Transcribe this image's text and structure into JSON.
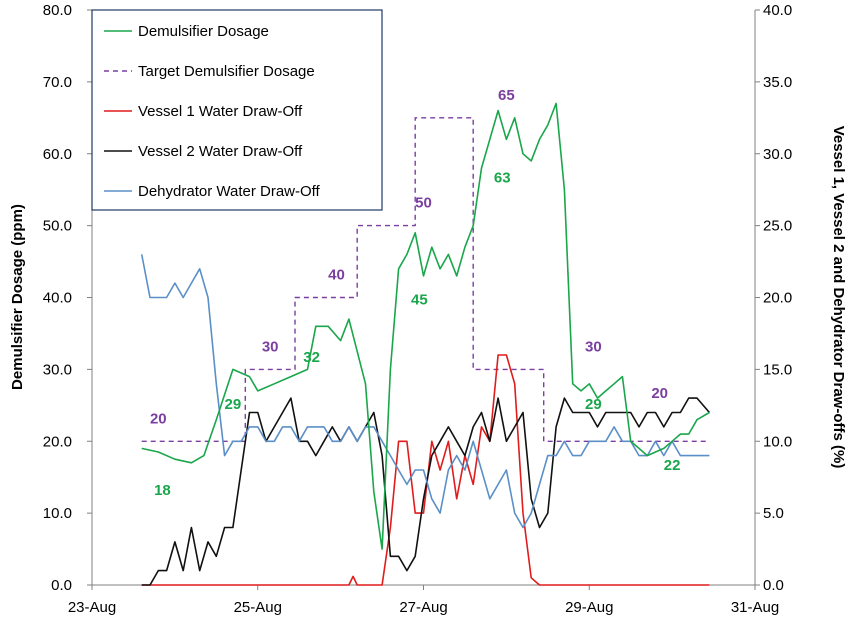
{
  "chart_data": {
    "type": "line",
    "title": "",
    "xlabel": "",
    "ylabel": "Demulsifier Dosage (ppm)",
    "y2label": "Vessel 1, Vessel 2 and Dehydrator Draw-offs (%)",
    "xlim": [
      0,
      8
    ],
    "ylim": [
      0,
      80
    ],
    "y2lim": [
      0,
      40
    ],
    "grid": false,
    "legend_position": "top-left",
    "x_ticks": [
      "23-Aug",
      "25-Aug",
      "27-Aug",
      "29-Aug",
      "31-Aug"
    ],
    "y_ticks": [
      "0.0",
      "10.0",
      "20.0",
      "30.0",
      "40.0",
      "50.0",
      "60.0",
      "70.0",
      "80.0"
    ],
    "y2_ticks": [
      "0.0",
      "5.0",
      "10.0",
      "15.0",
      "20.0",
      "25.0",
      "30.0",
      "35.0",
      "40.0"
    ],
    "colors": {
      "demulsifier": "#1aa64b",
      "target": "#7a3fa0",
      "vessel1": "#e01c1c",
      "vessel2": "#111111",
      "dehydrator": "#5b8fc7",
      "axis": "#808080"
    },
    "series": [
      {
        "name": "Demulsifier Dosage",
        "axis": "left",
        "color": "#1aa64b",
        "style": "solid",
        "x": [
          0.6,
          0.8,
          1.0,
          1.2,
          1.35,
          1.5,
          1.7,
          1.9,
          2.0,
          2.2,
          2.4,
          2.6,
          2.7,
          2.85,
          3.0,
          3.1,
          3.3,
          3.4,
          3.5,
          3.6,
          3.7,
          3.8,
          3.9,
          4.0,
          4.1,
          4.2,
          4.3,
          4.4,
          4.5,
          4.6,
          4.7,
          4.8,
          4.9,
          5.0,
          5.1,
          5.2,
          5.3,
          5.4,
          5.5,
          5.6,
          5.7,
          5.8,
          5.9,
          6.0,
          6.1,
          6.2,
          6.3,
          6.4,
          6.5,
          6.6,
          6.7,
          6.8,
          6.9,
          7.0,
          7.1,
          7.2,
          7.3,
          7.45
        ],
        "y": [
          19,
          18.5,
          17.5,
          17,
          18,
          23,
          30,
          29,
          27,
          28,
          29,
          30,
          36,
          36,
          34,
          37,
          28,
          13,
          5,
          30,
          44,
          46,
          49,
          43,
          47,
          44,
          46,
          43,
          47,
          50,
          58,
          62,
          66,
          62,
          65,
          60,
          59,
          62,
          64,
          67,
          55,
          28,
          27,
          28,
          26,
          27,
          28,
          29,
          20,
          19,
          18,
          18.5,
          19,
          20,
          21,
          21,
          23,
          24
        ]
      },
      {
        "name": "Target Demulsifier Dosage",
        "axis": "left",
        "color": "#7a3fa0",
        "style": "dashed",
        "x": [
          0.6,
          1.85,
          1.85,
          2.45,
          2.45,
          3.2,
          3.2,
          3.9,
          3.9,
          4.6,
          4.6,
          5.45,
          5.45,
          6.45,
          6.45,
          7.45
        ],
        "y": [
          20,
          20,
          30,
          30,
          40,
          40,
          50,
          50,
          65,
          65,
          30,
          30,
          20,
          20,
          20,
          20
        ]
      },
      {
        "name": "Vessel 1 Water Draw-Off",
        "axis": "right",
        "color": "#e01c1c",
        "style": "solid",
        "x": [
          0.6,
          1.5,
          2.5,
          3.1,
          3.15,
          3.2,
          3.5,
          3.6,
          3.7,
          3.8,
          3.9,
          4.0,
          4.1,
          4.2,
          4.3,
          4.4,
          4.5,
          4.6,
          4.7,
          4.8,
          4.9,
          5.0,
          5.1,
          5.2,
          5.3,
          5.4,
          5.5,
          5.6,
          6.5,
          7.45
        ],
        "y": [
          0,
          0,
          0,
          0,
          0.6,
          0,
          0,
          4,
          10,
          10,
          5,
          5,
          10,
          8,
          10,
          6,
          9,
          7,
          11,
          10,
          16,
          16,
          14,
          5,
          0.5,
          0,
          0,
          0,
          0,
          0
        ]
      },
      {
        "name": "Vessel 2 Water Draw-Off",
        "axis": "right",
        "color": "#111111",
        "style": "solid",
        "x": [
          0.6,
          0.7,
          0.8,
          0.9,
          1.0,
          1.1,
          1.2,
          1.3,
          1.4,
          1.5,
          1.6,
          1.7,
          1.8,
          1.9,
          2.0,
          2.1,
          2.2,
          2.3,
          2.4,
          2.5,
          2.6,
          2.7,
          2.8,
          2.9,
          3.0,
          3.1,
          3.2,
          3.3,
          3.4,
          3.5,
          3.6,
          3.7,
          3.8,
          3.9,
          4.0,
          4.1,
          4.2,
          4.3,
          4.4,
          4.5,
          4.6,
          4.7,
          4.8,
          4.9,
          5.0,
          5.1,
          5.2,
          5.3,
          5.4,
          5.5,
          5.6,
          5.7,
          5.8,
          5.9,
          6.0,
          6.1,
          6.2,
          6.3,
          6.4,
          6.5,
          6.6,
          6.7,
          6.8,
          6.9,
          7.0,
          7.1,
          7.2,
          7.3,
          7.45
        ],
        "y": [
          0,
          0,
          1,
          1,
          3,
          1,
          4,
          1,
          3,
          2,
          4,
          4,
          8,
          12,
          12,
          10,
          11,
          12,
          13,
          10,
          10,
          9,
          10,
          11,
          10,
          11,
          10,
          11,
          12,
          9,
          2,
          2,
          1,
          2,
          6,
          9,
          10,
          11,
          10,
          9,
          11,
          12,
          10,
          13,
          10,
          11,
          12,
          6,
          4,
          5,
          11,
          13,
          12,
          12,
          12,
          11,
          12,
          12,
          12,
          12,
          11,
          12,
          12,
          11,
          12,
          12,
          13,
          13,
          12
        ]
      },
      {
        "name": "Dehydrator Water Draw-Off",
        "axis": "right",
        "color": "#5b8fc7",
        "style": "solid",
        "x": [
          0.6,
          0.7,
          0.8,
          0.9,
          1.0,
          1.1,
          1.2,
          1.3,
          1.4,
          1.5,
          1.6,
          1.7,
          1.8,
          1.9,
          2.0,
          2.1,
          2.2,
          2.3,
          2.4,
          2.5,
          2.6,
          2.7,
          2.8,
          2.9,
          3.0,
          3.1,
          3.2,
          3.3,
          3.4,
          3.5,
          3.6,
          3.7,
          3.8,
          3.9,
          4.0,
          4.1,
          4.2,
          4.3,
          4.4,
          4.5,
          4.6,
          4.7,
          4.8,
          4.9,
          5.0,
          5.1,
          5.2,
          5.3,
          5.4,
          5.5,
          5.6,
          5.7,
          5.8,
          5.9,
          6.0,
          6.1,
          6.2,
          6.3,
          6.4,
          6.5,
          6.6,
          6.7,
          6.8,
          6.9,
          7.0,
          7.1,
          7.2,
          7.3,
          7.45
        ],
        "y": [
          23,
          20,
          20,
          20,
          21,
          20,
          21,
          22,
          20,
          14,
          9,
          10,
          10,
          11,
          11,
          10,
          10,
          11,
          11,
          10,
          11,
          11,
          11,
          10,
          10,
          11,
          10,
          11,
          11,
          10,
          9,
          8,
          7,
          8,
          8,
          6,
          5,
          8,
          9,
          8,
          10,
          8,
          6,
          7,
          8,
          5,
          4,
          5,
          7,
          9,
          9,
          10,
          9,
          9,
          10,
          10,
          10,
          11,
          10,
          10,
          9,
          9,
          10,
          9,
          10,
          9,
          9,
          9,
          9
        ]
      }
    ],
    "annotations": [
      {
        "text": "20",
        "x": 0.8,
        "y": 22.5,
        "color": "#7a3fa0"
      },
      {
        "text": "30",
        "x": 2.15,
        "y": 32.5,
        "color": "#7a3fa0"
      },
      {
        "text": "40",
        "x": 2.95,
        "y": 42.5,
        "color": "#7a3fa0"
      },
      {
        "text": "50",
        "x": 4.0,
        "y": 52.5,
        "color": "#7a3fa0"
      },
      {
        "text": "65",
        "x": 5.0,
        "y": 67.5,
        "color": "#7a3fa0"
      },
      {
        "text": "30",
        "x": 6.05,
        "y": 32.5,
        "color": "#7a3fa0"
      },
      {
        "text": "20",
        "x": 6.85,
        "y": 26.0,
        "color": "#7a3fa0"
      },
      {
        "text": "18",
        "x": 0.85,
        "y": 12.5,
        "color": "#1aa64b"
      },
      {
        "text": "29",
        "x": 1.7,
        "y": 24.5,
        "color": "#1aa64b"
      },
      {
        "text": "32",
        "x": 2.65,
        "y": 31.0,
        "color": "#1aa64b"
      },
      {
        "text": "45",
        "x": 3.95,
        "y": 39.0,
        "color": "#1aa64b"
      },
      {
        "text": "63",
        "x": 4.95,
        "y": 56.0,
        "color": "#1aa64b"
      },
      {
        "text": "29",
        "x": 6.05,
        "y": 24.5,
        "color": "#1aa64b"
      },
      {
        "text": "22",
        "x": 7.0,
        "y": 16.0,
        "color": "#1aa64b"
      }
    ]
  }
}
